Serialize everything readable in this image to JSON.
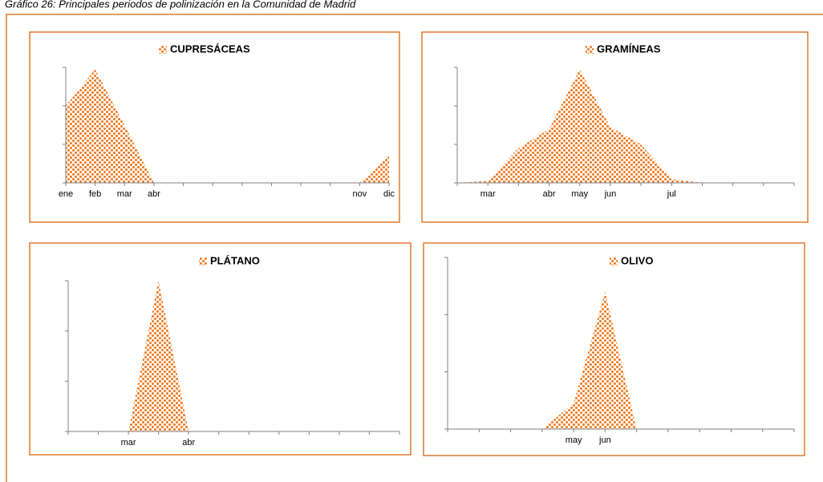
{
  "caption": "Gráfico 26: Principales periodos de polinización en la Comunidad de Madrid",
  "chart_data": [
    {
      "type": "area",
      "categories": [
        "ene",
        "feb",
        "mar",
        "abr",
        null,
        null,
        null,
        null,
        null,
        null,
        "nov",
        "dic"
      ],
      "series": [
        {
          "name": "CUPRESÁCEAS",
          "color": "#f07820",
          "values": [
            2.0,
            2.95,
            1.5,
            0,
            0,
            0,
            0,
            0,
            0,
            0,
            0,
            0.7
          ]
        }
      ],
      "ylim": [
        0,
        3
      ],
      "yticks": [
        0,
        1,
        2,
        3
      ]
    },
    {
      "type": "area",
      "categories": [
        null,
        "mar",
        null,
        "abr",
        "may",
        "jun",
        null,
        "jul",
        null,
        null,
        null,
        null
      ],
      "series": [
        {
          "name": "GRAMÍNEAS",
          "color": "#f07820",
          "values": [
            0,
            0.05,
            0.9,
            1.4,
            2.95,
            1.45,
            1.0,
            0.1,
            0,
            0,
            0,
            0
          ]
        }
      ],
      "ylim": [
        0,
        3
      ],
      "yticks": [
        0,
        1,
        2,
        3
      ]
    },
    {
      "type": "area",
      "categories": [
        null,
        null,
        "mar",
        null,
        "abr",
        null,
        null,
        null,
        null,
        null,
        null,
        null
      ],
      "series": [
        {
          "name": "PLÁTANO",
          "color": "#f07820",
          "values": [
            0,
            0,
            0,
            3.0,
            0,
            0,
            0,
            0,
            0,
            0,
            0,
            0
          ]
        }
      ],
      "ylim": [
        0,
        3
      ],
      "yticks": [
        0,
        1,
        2,
        3
      ]
    },
    {
      "type": "area",
      "categories": [
        null,
        null,
        null,
        null,
        "may",
        "jun",
        null,
        null,
        null,
        null,
        null,
        null
      ],
      "series": [
        {
          "name": "OLIVO",
          "color": "#f07820",
          "values": [
            0,
            0,
            0,
            0,
            0.45,
            2.4,
            0,
            0,
            0,
            0,
            0,
            0
          ]
        }
      ],
      "ylim": [
        0,
        3
      ],
      "yticks": [
        0,
        1,
        2,
        3
      ]
    }
  ]
}
